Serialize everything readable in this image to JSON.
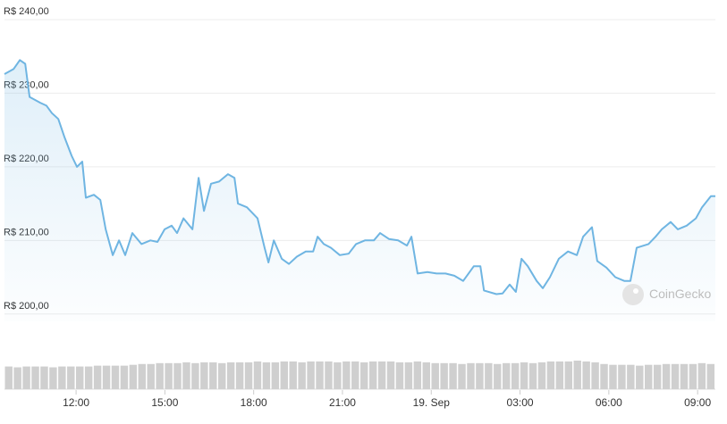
{
  "chart_data": {
    "type": "line",
    "watermark": "CoinGecko",
    "color": "#6fb5e2",
    "x": [
      9.58,
      9.89,
      10.1,
      10.28,
      10.43,
      10.79,
      11.0,
      11.18,
      11.4,
      11.61,
      11.85,
      12.03,
      12.21,
      12.33,
      12.6,
      12.82,
      13.0,
      13.24,
      13.45,
      13.66,
      13.9,
      14.21,
      14.51,
      14.75,
      14.99,
      15.23,
      15.41,
      15.63,
      15.93,
      16.14,
      16.32,
      16.56,
      16.83,
      17.13,
      17.35,
      17.47,
      17.77,
      18.13,
      18.37,
      18.5,
      18.68,
      18.95,
      19.19,
      19.46,
      19.76,
      20.01,
      20.16,
      20.37,
      20.61,
      20.91,
      21.21,
      21.46,
      21.76,
      22.06,
      22.27,
      22.57,
      22.88,
      23.18,
      23.33,
      23.54,
      23.87,
      24.18,
      24.48,
      24.78,
      25.08,
      25.44,
      25.66,
      25.78,
      26.2,
      26.41,
      26.65,
      26.86,
      27.05,
      27.26,
      27.56,
      27.77,
      28.01,
      28.31,
      28.62,
      28.92,
      29.13,
      29.43,
      29.61,
      29.92,
      30.22,
      30.52,
      30.73,
      30.94,
      31.34,
      31.58,
      31.79,
      32.09,
      32.33,
      32.63,
      32.94,
      33.15,
      33.45,
      33.6
    ],
    "values": [
      232.6,
      233.3,
      234.5,
      234,
      229.5,
      228.7,
      228.3,
      227.3,
      226.5,
      224,
      221.5,
      220,
      220.7,
      215.8,
      216.2,
      215.5,
      211.5,
      208,
      210,
      208,
      211,
      209.5,
      210,
      209.8,
      211.5,
      212,
      211,
      213,
      211.5,
      218.5,
      214,
      217.7,
      218,
      219,
      218.5,
      215,
      214.5,
      213,
      209,
      207,
      210,
      207.5,
      206.8,
      207.8,
      208.5,
      208.5,
      210.5,
      209.5,
      209,
      208,
      208.2,
      209.5,
      210,
      210,
      211,
      210.2,
      210,
      209.3,
      210.5,
      205.5,
      205.7,
      205.5,
      205.5,
      205.2,
      204.5,
      206.5,
      206.5,
      203.2,
      202.7,
      202.8,
      204,
      203,
      207.5,
      206.5,
      204.5,
      203.5,
      205,
      207.5,
      208.5,
      208,
      210.5,
      211.8,
      207.2,
      206.3,
      205,
      204.5,
      204.5,
      209,
      209.5,
      210.5,
      211.5,
      212.5,
      211.5,
      212,
      213,
      214.5,
      216,
      216
    ],
    "xlim": [
      9.58,
      33.6
    ],
    "xticks": [
      {
        "value": 12,
        "label": "12:00"
      },
      {
        "value": 15,
        "label": "15:00"
      },
      {
        "value": 18,
        "label": "18:00"
      },
      {
        "value": 21,
        "label": "21:00"
      },
      {
        "value": 24,
        "label": "19. Sep"
      },
      {
        "value": 27,
        "label": "03:00"
      },
      {
        "value": 30,
        "label": "06:00"
      },
      {
        "value": 33,
        "label": "09:00"
      }
    ],
    "ylim": [
      199,
      242
    ],
    "yticks": [
      {
        "value": 200,
        "label": "R$ 200,00"
      },
      {
        "value": 210,
        "label": "R$ 210,00"
      },
      {
        "value": 220,
        "label": "R$ 220,00"
      },
      {
        "value": 230,
        "label": "R$ 230,00"
      },
      {
        "value": 240,
        "label": "R$ 240,00"
      }
    ],
    "grid": true,
    "volume": {
      "color": "#cfcfcf",
      "values": [
        27,
        26,
        27,
        27,
        27,
        26,
        27,
        27,
        27,
        27,
        28,
        28,
        28,
        28,
        29,
        30,
        30,
        31,
        31,
        31,
        32,
        31,
        32,
        32,
        31,
        32,
        32,
        32,
        33,
        32,
        32,
        33,
        33,
        32,
        33,
        33,
        33,
        32,
        33,
        33,
        32,
        33,
        33,
        33,
        32,
        32,
        33,
        32,
        31,
        31,
        31,
        30,
        31,
        31,
        31,
        30,
        31,
        31,
        32,
        31,
        32,
        33,
        33,
        33,
        34,
        33,
        32,
        30,
        29,
        29,
        29,
        28,
        29,
        29,
        30,
        30,
        30,
        30,
        31,
        30
      ]
    }
  }
}
